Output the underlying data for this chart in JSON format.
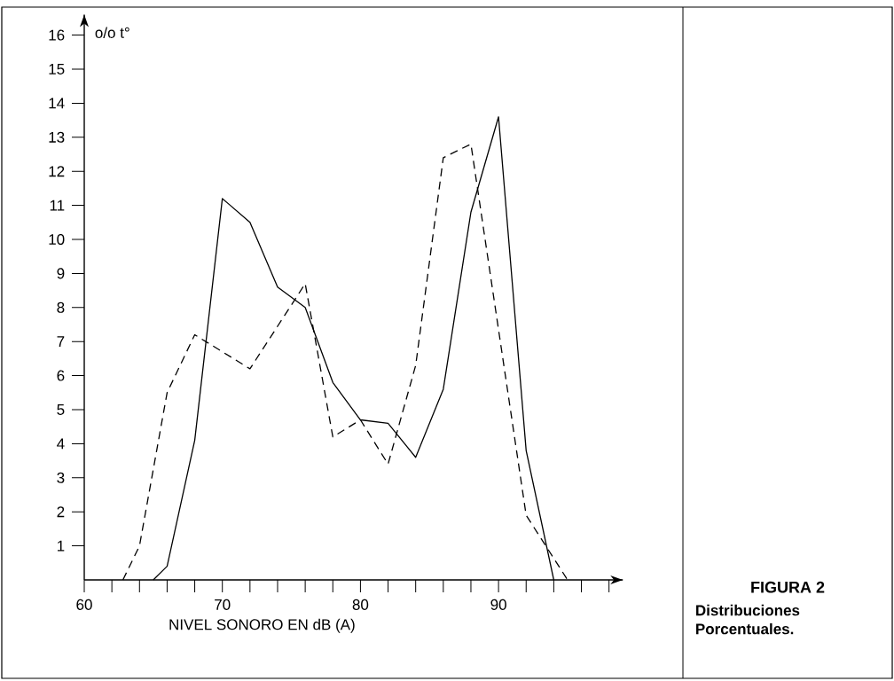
{
  "chart_data": {
    "type": "line",
    "xlabel": "NIVEL SONORO EN dB (A)",
    "ylabel": "o/o t°",
    "series": [
      {
        "color": "#000000",
        "line_style": "solid",
        "x": [
          65,
          66,
          68,
          70,
          72,
          74,
          76,
          78,
          80,
          82,
          84,
          86,
          88,
          90,
          92,
          94
        ],
        "values": [
          0,
          0.4,
          4.1,
          11.2,
          10.5,
          8.6,
          8.0,
          5.8,
          4.7,
          4.6,
          3.6,
          5.6,
          10.8,
          13.6,
          3.8,
          0
        ]
      },
      {
        "color": "#000000",
        "line_style": "dashed",
        "x": [
          62.8,
          64,
          66,
          68,
          72,
          76,
          78,
          80,
          82,
          84,
          86,
          88,
          92,
          95
        ],
        "values": [
          0,
          1.0,
          5.5,
          7.2,
          6.2,
          8.7,
          4.2,
          4.7,
          3.4,
          6.3,
          12.4,
          12.8,
          1.9,
          0
        ]
      }
    ],
    "xlim": [
      60,
      99
    ],
    "ylim": [
      0,
      16.6
    ],
    "xticks": [
      60,
      {
        "value": 62,
        "label": null
      },
      {
        "value": 64,
        "label": null
      },
      {
        "value": 66,
        "label": null
      },
      {
        "value": 68,
        "label": null
      },
      70,
      {
        "value": 72,
        "label": null
      },
      {
        "value": 74,
        "label": null
      },
      {
        "value": 76,
        "label": null
      },
      {
        "value": 78,
        "label": null
      },
      80,
      {
        "value": 82,
        "label": null
      },
      {
        "value": 84,
        "label": null
      },
      {
        "value": 86,
        "label": null
      },
      {
        "value": 88,
        "label": null
      },
      90,
      {
        "value": 92,
        "label": null
      },
      {
        "value": 94,
        "label": null
      },
      {
        "value": 96,
        "label": null
      },
      {
        "value": 98,
        "label": null
      }
    ],
    "yticks": [
      1,
      2,
      3,
      4,
      5,
      6,
      7,
      8,
      9,
      10,
      11,
      12,
      13,
      14,
      15,
      16
    ],
    "annotations": [
      "FIGURA 2",
      "Distribuciones Porcentuales."
    ]
  }
}
